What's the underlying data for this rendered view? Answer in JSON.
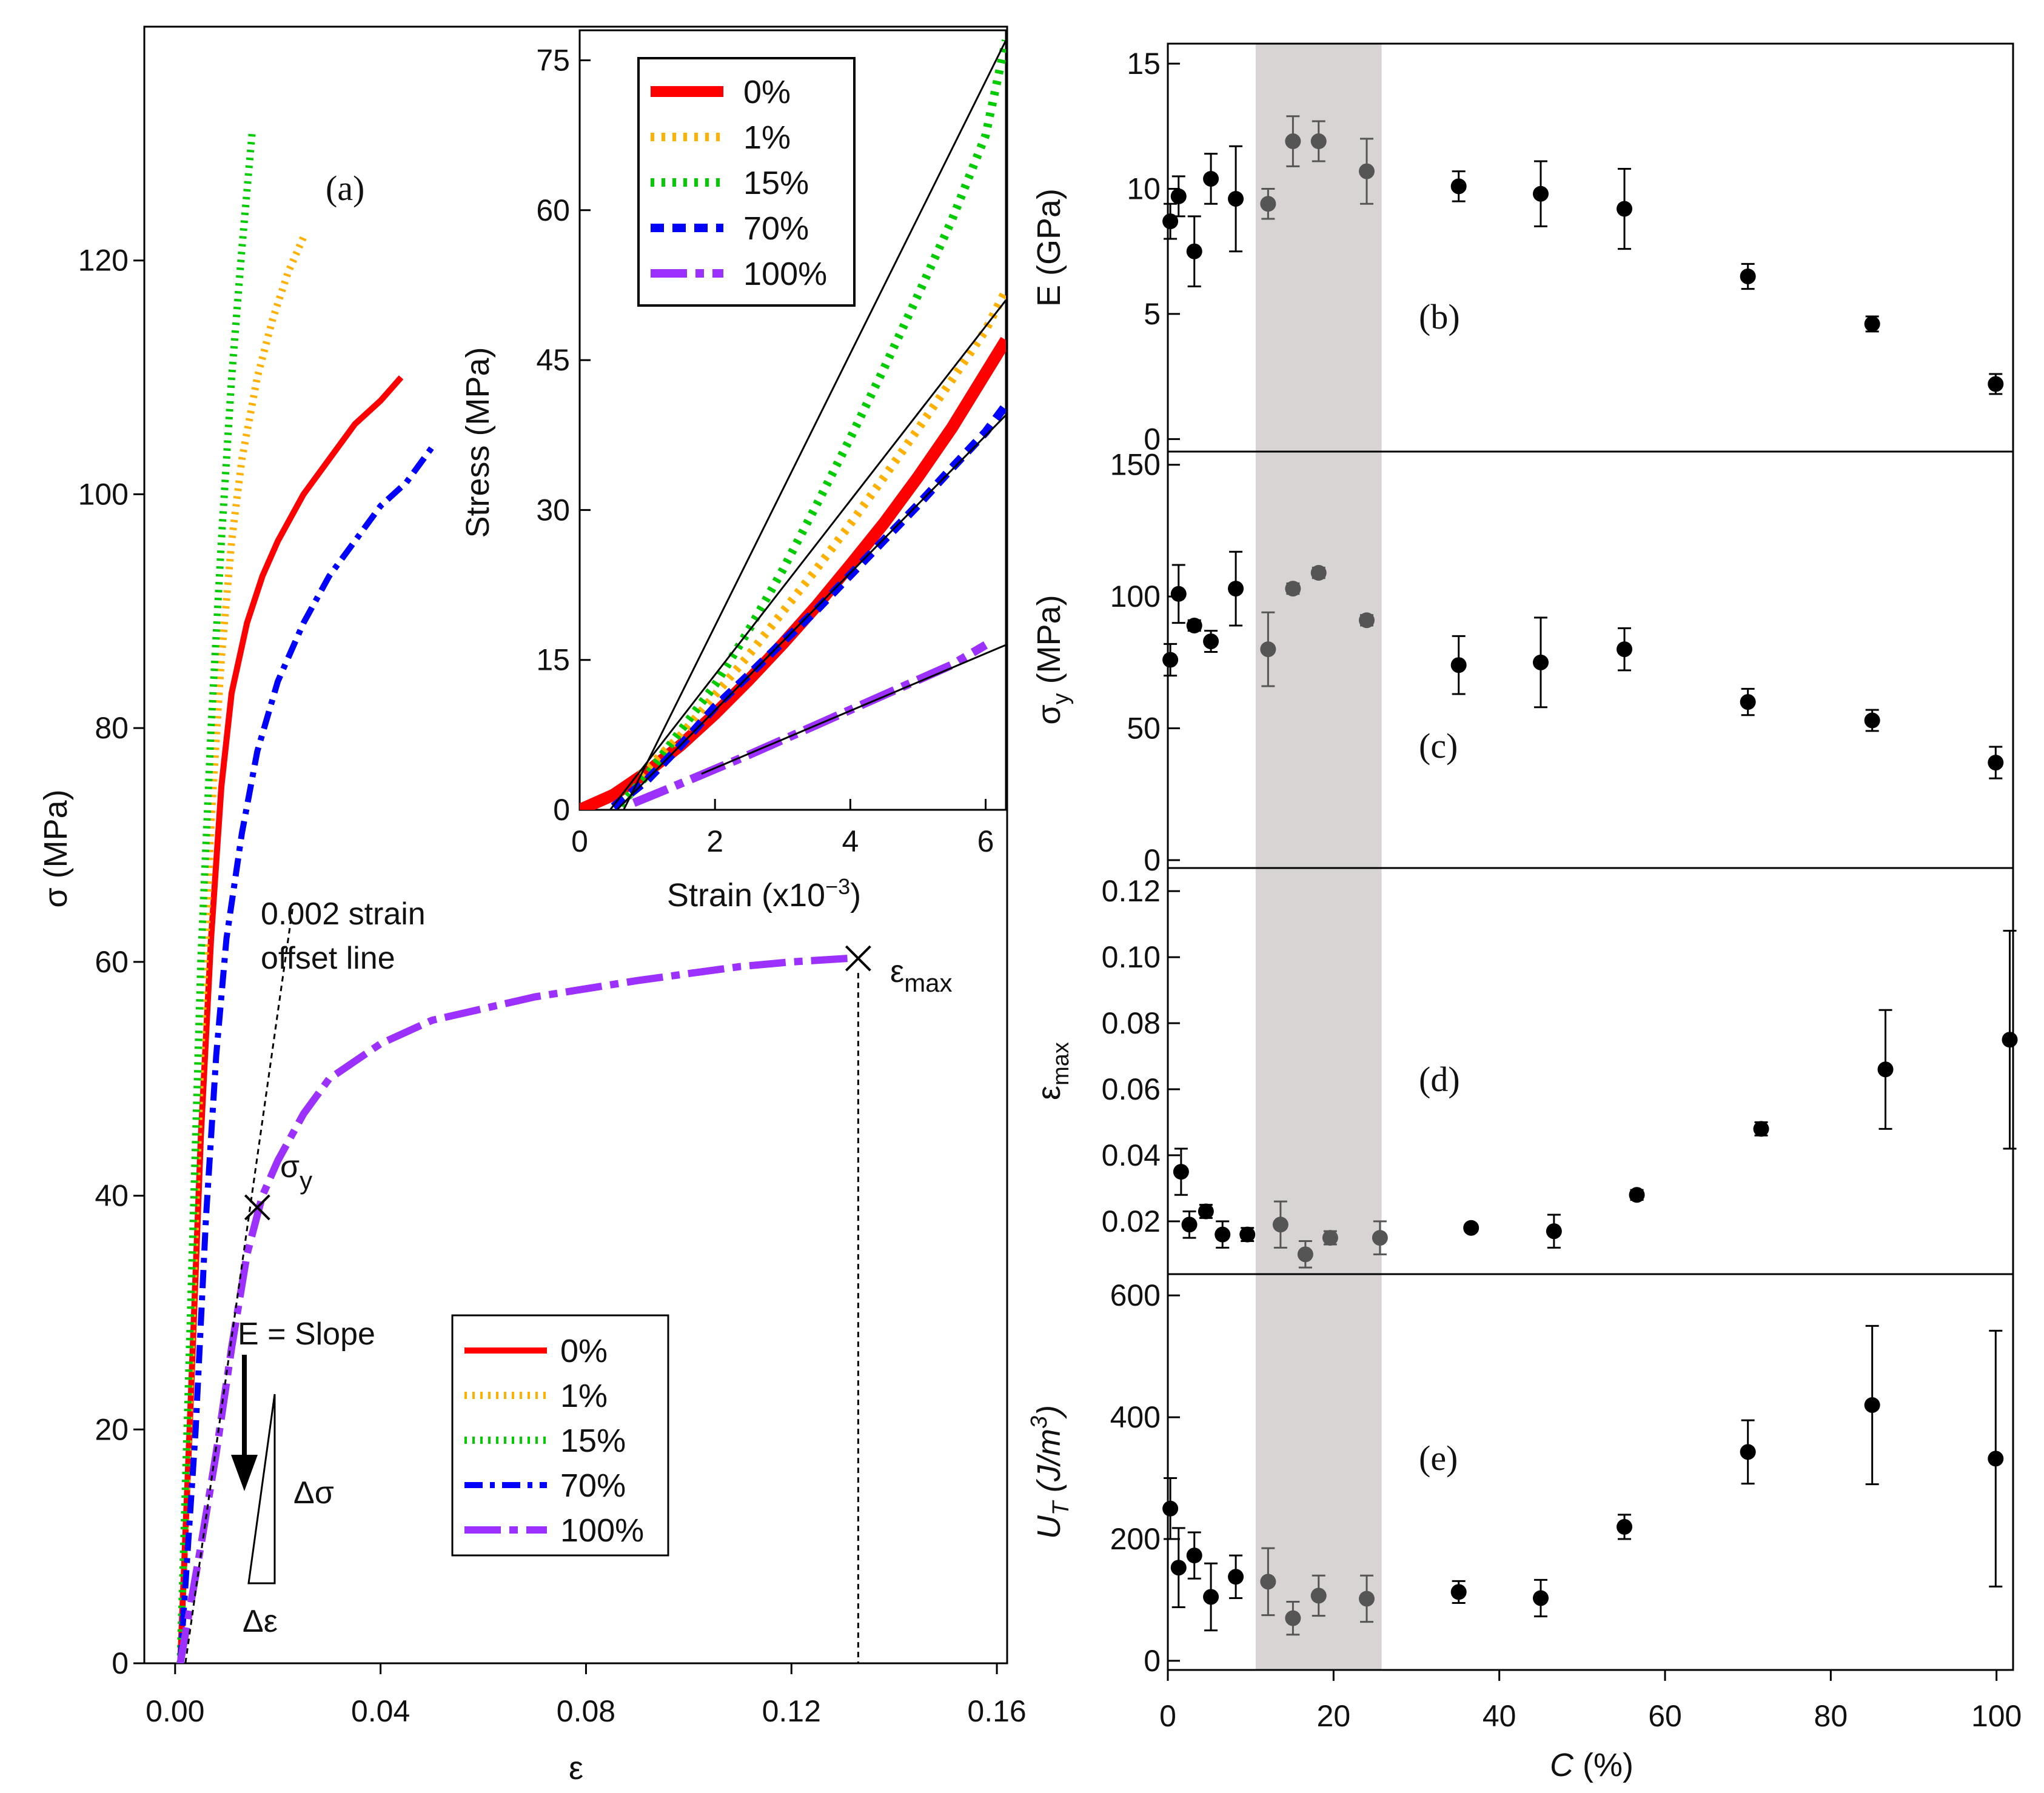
{
  "chart_data": [
    {
      "panel": "a",
      "type": "line",
      "panel_label": "(a)",
      "xlabel": "ε",
      "ylabel": "σ (MPa)",
      "xlim": [
        -0.006,
        0.162
      ],
      "ylim": [
        0,
        140
      ],
      "xticks": [
        0,
        0.04,
        0.08,
        0.12,
        0.16
      ],
      "xtick_labels": [
        "0.00",
        "0.04",
        "0.08",
        "0.12",
        "0.16"
      ],
      "yticks": [
        0,
        20,
        40,
        60,
        80,
        100,
        120
      ],
      "ytick_labels": [
        "0",
        "20",
        "40",
        "60",
        "80",
        "100",
        "120"
      ],
      "grid": false,
      "legend_position": "bottom-right",
      "legend_entries": [
        "0%",
        "1%",
        "15%",
        "70%",
        "100%"
      ],
      "colors": {
        "c0": "#ff0000",
        "c1": "#ffb000",
        "c15": "#00cc00",
        "c70": "#0000ff",
        "c100": "#9b30ff"
      },
      "series": [
        {
          "name": "0%",
          "style": "solid",
          "x": [
            0.001,
            0.003,
            0.005,
            0.007,
            0.009,
            0.011,
            0.014,
            0.017,
            0.02,
            0.025,
            0.03,
            0.035,
            0.04,
            0.044
          ],
          "y": [
            0,
            22,
            45,
            62,
            75,
            83,
            89,
            93,
            96,
            100,
            103,
            106,
            108,
            110
          ]
        },
        {
          "name": "1%",
          "style": "dotted",
          "x": [
            0.001,
            0.003,
            0.005,
            0.007,
            0.009,
            0.011,
            0.013,
            0.016,
            0.019,
            0.022,
            0.025
          ],
          "y": [
            0,
            25,
            52,
            72,
            86,
            96,
            103,
            110,
            115,
            119,
            122
          ]
        },
        {
          "name": "15%",
          "style": "dotted",
          "x": [
            0.001,
            0.003,
            0.005,
            0.007,
            0.009,
            0.011,
            0.013,
            0.015
          ],
          "y": [
            0,
            30,
            60,
            80,
            96,
            110,
            121,
            131
          ]
        },
        {
          "name": "70%",
          "style": "dashdot",
          "x": [
            0.001,
            0.004,
            0.006,
            0.008,
            0.01,
            0.013,
            0.016,
            0.02,
            0.025,
            0.03,
            0.035,
            0.04,
            0.045,
            0.05
          ],
          "y": [
            0,
            20,
            38,
            52,
            62,
            71,
            78,
            84,
            89,
            93,
            96,
            99,
            101,
            104
          ]
        },
        {
          "name": "100%",
          "style": "longdash",
          "x": [
            0.001,
            0.005,
            0.008,
            0.011,
            0.014,
            0.017,
            0.02,
            0.025,
            0.03,
            0.04,
            0.05,
            0.06,
            0.07,
            0.08,
            0.09,
            0.1,
            0.11,
            0.12,
            0.131
          ],
          "y": [
            0,
            10,
            18,
            27,
            35,
            40,
            43,
            47,
            50,
            53,
            55,
            56,
            57,
            57.7,
            58.4,
            59,
            59.6,
            60,
            60.3
          ]
        }
      ],
      "annotations": {
        "offset_line": "0.002 strain\noffset line",
        "sigma_y": "σ",
        "sigma_y_sub": "y",
        "eps_max": "ε",
        "eps_max_sub": "max",
        "e_slope": "E = Slope",
        "delta_sigma": "Δσ",
        "delta_eps": "Δε"
      },
      "markers": [
        {
          "label": "σy",
          "x": 0.016,
          "y": 39
        },
        {
          "label": "εmax",
          "x": 0.133,
          "y": 60.3
        }
      ],
      "offset_line_pts": [
        [
          0.002,
          0
        ],
        [
          0.023,
          65
        ]
      ]
    },
    {
      "panel": "inset",
      "type": "line",
      "xlabel": "Strain (x10",
      "xlabel_sup": "−3",
      "xlabel_end": ")",
      "ylabel": "Stress (MPa)",
      "xlim": [
        0,
        6.3
      ],
      "ylim": [
        0,
        78
      ],
      "xticks": [
        0,
        2,
        4,
        6
      ],
      "xtick_labels": [
        "0",
        "2",
        "4",
        "6"
      ],
      "yticks": [
        0,
        15,
        30,
        45,
        60,
        75
      ],
      "ytick_labels": [
        "0",
        "15",
        "30",
        "45",
        "60",
        "75"
      ],
      "legend_position": "top-left",
      "legend_entries": [
        "0%",
        "1%",
        "15%",
        "70%",
        "100%"
      ],
      "series": [
        {
          "name": "0%",
          "style": "solid",
          "x": [
            0,
            0.5,
            1,
            1.5,
            2,
            2.5,
            3,
            3.5,
            4,
            4.5,
            5,
            5.5,
            6,
            6.3
          ],
          "y": [
            0,
            1.5,
            3.8,
            6.5,
            9.6,
            13,
            16.6,
            20.4,
            24.5,
            28.7,
            33.3,
            38.2,
            43.7,
            47
          ]
        },
        {
          "name": "1%",
          "style": "dotted",
          "x": [
            0.9,
            1.5,
            2,
            2.5,
            3,
            3.5,
            4,
            4.5,
            5,
            5.5,
            6,
            6.3
          ],
          "y": [
            3.5,
            7.5,
            11.5,
            15.5,
            19.8,
            24.1,
            28.6,
            33.3,
            38.1,
            43,
            48,
            52
          ]
        },
        {
          "name": "15%",
          "style": "dotted",
          "x": [
            0.6,
            1,
            1.5,
            2,
            2.5,
            3,
            3.5,
            4,
            4.5,
            5,
            5.5,
            6,
            6.3
          ],
          "y": [
            0.5,
            3.5,
            8,
            12.5,
            18,
            24,
            30.5,
            37.2,
            44.2,
            51.5,
            59,
            67.5,
            77
          ]
        },
        {
          "name": "70%",
          "style": "dashed",
          "x": [
            0.5,
            1,
            1.5,
            2,
            2.5,
            3,
            3.5,
            4,
            4.5,
            5,
            5.5,
            6,
            6.3
          ],
          "y": [
            0.3,
            3,
            6.5,
            10.3,
            13.5,
            16.8,
            20,
            23.5,
            27,
            30.5,
            34.2,
            37.8,
            40.5
          ]
        },
        {
          "name": "100%",
          "style": "longdash",
          "x": [
            0.8,
            1.2,
            1.8,
            2.5,
            3,
            3.5,
            4,
            4.5,
            5,
            5.5,
            6
          ],
          "y": [
            0.7,
            1.8,
            3.5,
            5.5,
            7,
            8.5,
            10,
            11.5,
            13,
            14.5,
            16.5
          ]
        }
      ],
      "fit_lines": [
        {
          "x": [
            0.65,
            6.3
          ],
          "y": [
            0,
            77
          ]
        },
        {
          "x": [
            0.45,
            6.3
          ],
          "y": [
            0,
            51
          ]
        },
        {
          "x": [
            0.55,
            6.3
          ],
          "y": [
            0,
            39.5
          ]
        },
        {
          "x": [
            1.8,
            6.3
          ],
          "y": [
            3.6,
            16.5
          ]
        }
      ]
    },
    {
      "panel": "b",
      "type": "scatter",
      "panel_label": "(b)",
      "ylabel": "E (GPa)",
      "xlim": [
        0,
        102
      ],
      "ylim": [
        -0.5,
        15.8
      ],
      "yticks": [
        0,
        5,
        10,
        15
      ],
      "ytick_labels": [
        "0",
        "5",
        "10",
        "15"
      ],
      "shaded_region": [
        10.6,
        25.8
      ],
      "points": [
        {
          "x": 0.3,
          "y": 8.7,
          "err": 0.7
        },
        {
          "x": 1.3,
          "y": 9.7,
          "err": 0.8
        },
        {
          "x": 3.2,
          "y": 7.5,
          "err": 1.4
        },
        {
          "x": 5.2,
          "y": 10.4,
          "err": 1.0
        },
        {
          "x": 8.2,
          "y": 9.6,
          "err": 2.1
        },
        {
          "x": 12.1,
          "y": 9.4,
          "err": 0.6
        },
        {
          "x": 15.1,
          "y": 11.9,
          "err": 1.0
        },
        {
          "x": 18.2,
          "y": 11.9,
          "err": 0.8
        },
        {
          "x": 24,
          "y": 10.7,
          "err": 1.3
        },
        {
          "x": 35.1,
          "y": 10.1,
          "err": 0.6
        },
        {
          "x": 45,
          "y": 9.8,
          "err": 1.3
        },
        {
          "x": 55.1,
          "y": 9.2,
          "err": 1.6
        },
        {
          "x": 70,
          "y": 6.5,
          "err": 0.5
        },
        {
          "x": 85,
          "y": 4.6,
          "err": 0.3
        },
        {
          "x": 99.9,
          "y": 2.2,
          "err": 0.4
        }
      ]
    },
    {
      "panel": "c",
      "type": "scatter",
      "panel_label": "(c)",
      "ylabel": "σ",
      "ylabel_sub": "y",
      "ylabel_end": " (MPa)",
      "xlim": [
        0,
        102
      ],
      "ylim": [
        -3,
        155
      ],
      "yticks": [
        0,
        50,
        100,
        150
      ],
      "ytick_labels": [
        "0",
        "50",
        "100",
        "150"
      ],
      "shaded_region": [
        10.6,
        25.8
      ],
      "points": [
        {
          "x": 0.3,
          "y": 76,
          "err": 6
        },
        {
          "x": 1.3,
          "y": 101,
          "err": 11
        },
        {
          "x": 3.2,
          "y": 89,
          "err": 2
        },
        {
          "x": 5.2,
          "y": 83,
          "err": 4
        },
        {
          "x": 8.2,
          "y": 103,
          "err": 14
        },
        {
          "x": 12.1,
          "y": 80,
          "err": 14
        },
        {
          "x": 15.1,
          "y": 103,
          "err": 2
        },
        {
          "x": 18.2,
          "y": 109,
          "err": 2
        },
        {
          "x": 24,
          "y": 91,
          "err": 2
        },
        {
          "x": 35.1,
          "y": 74,
          "err": 11
        },
        {
          "x": 45,
          "y": 75,
          "err": 17
        },
        {
          "x": 55.1,
          "y": 80,
          "err": 8
        },
        {
          "x": 70,
          "y": 60,
          "err": 5
        },
        {
          "x": 85,
          "y": 53,
          "err": 4
        },
        {
          "x": 99.9,
          "y": 37,
          "err": 6
        }
      ]
    },
    {
      "panel": "d",
      "type": "scatter",
      "panel_label": "(d)",
      "ylabel": "ε",
      "ylabel_sub": "max",
      "xlim": [
        0,
        102
      ],
      "ylim": [
        0.004,
        0.127
      ],
      "yticks": [
        0.02,
        0.04,
        0.06,
        0.08,
        0.1,
        0.12
      ],
      "ytick_labels": [
        "0.02",
        "0.04",
        "0.06",
        "0.08",
        "0.10",
        "0.12"
      ],
      "shaded_region": [
        10.6,
        25.8
      ],
      "points": [
        {
          "x": 1.6,
          "y": 0.035,
          "err": 0.007
        },
        {
          "x": 2.6,
          "y": 0.019,
          "err": 0.004
        },
        {
          "x": 4.6,
          "y": 0.023,
          "err": 0.002
        },
        {
          "x": 6.6,
          "y": 0.016,
          "err": 0.004
        },
        {
          "x": 9.6,
          "y": 0.016,
          "err": 0.002
        },
        {
          "x": 13.6,
          "y": 0.019,
          "err": 0.007
        },
        {
          "x": 16.6,
          "y": 0.01,
          "err": 0.004
        },
        {
          "x": 19.6,
          "y": 0.015,
          "err": 0.002
        },
        {
          "x": 25.6,
          "y": 0.015,
          "err": 0.005
        },
        {
          "x": 36.6,
          "y": 0.018,
          "err": 0.001
        },
        {
          "x": 46.6,
          "y": 0.017,
          "err": 0.005
        },
        {
          "x": 56.6,
          "y": 0.028,
          "err": 0.0015
        },
        {
          "x": 71.6,
          "y": 0.048,
          "err": 0.002
        },
        {
          "x": 86.6,
          "y": 0.066,
          "err": 0.018
        },
        {
          "x": 101.6,
          "y": 0.075,
          "err": 0.033
        }
      ]
    },
    {
      "panel": "e",
      "type": "scatter",
      "panel_label": "(e)",
      "ylabel": "U",
      "ylabel_sub": "T",
      "ylabel_end": " (J/m",
      "ylabel_sup": "3",
      "ylabel_close": ")",
      "xlabel": "C",
      "xlabel_end": " (%)",
      "xlim": [
        0,
        102
      ],
      "xticks": [
        0,
        20,
        40,
        60,
        80,
        100
      ],
      "xtick_labels": [
        "0",
        "20",
        "40",
        "60",
        "80",
        "100"
      ],
      "ylim": [
        -15,
        635
      ],
      "yticks": [
        0,
        200,
        400,
        600
      ],
      "ytick_labels": [
        "0",
        "200",
        "400",
        "600"
      ],
      "shaded_region": [
        10.6,
        25.8
      ],
      "points": [
        {
          "x": 0.3,
          "y": 250,
          "err": 50
        },
        {
          "x": 1.3,
          "y": 153,
          "err": 65
        },
        {
          "x": 3.2,
          "y": 173,
          "err": 38
        },
        {
          "x": 5.2,
          "y": 105,
          "err": 55
        },
        {
          "x": 8.2,
          "y": 138,
          "err": 35
        },
        {
          "x": 12.1,
          "y": 130,
          "err": 55
        },
        {
          "x": 15.1,
          "y": 70,
          "err": 27
        },
        {
          "x": 18.2,
          "y": 107,
          "err": 33
        },
        {
          "x": 24,
          "y": 102,
          "err": 38
        },
        {
          "x": 35.1,
          "y": 113,
          "err": 18
        },
        {
          "x": 45,
          "y": 103,
          "err": 30
        },
        {
          "x": 55.1,
          "y": 220,
          "err": 20
        },
        {
          "x": 70,
          "y": 343,
          "err": 52
        },
        {
          "x": 85,
          "y": 420,
          "err": 130
        },
        {
          "x": 99.9,
          "y": 332,
          "err": 210
        }
      ]
    }
  ]
}
